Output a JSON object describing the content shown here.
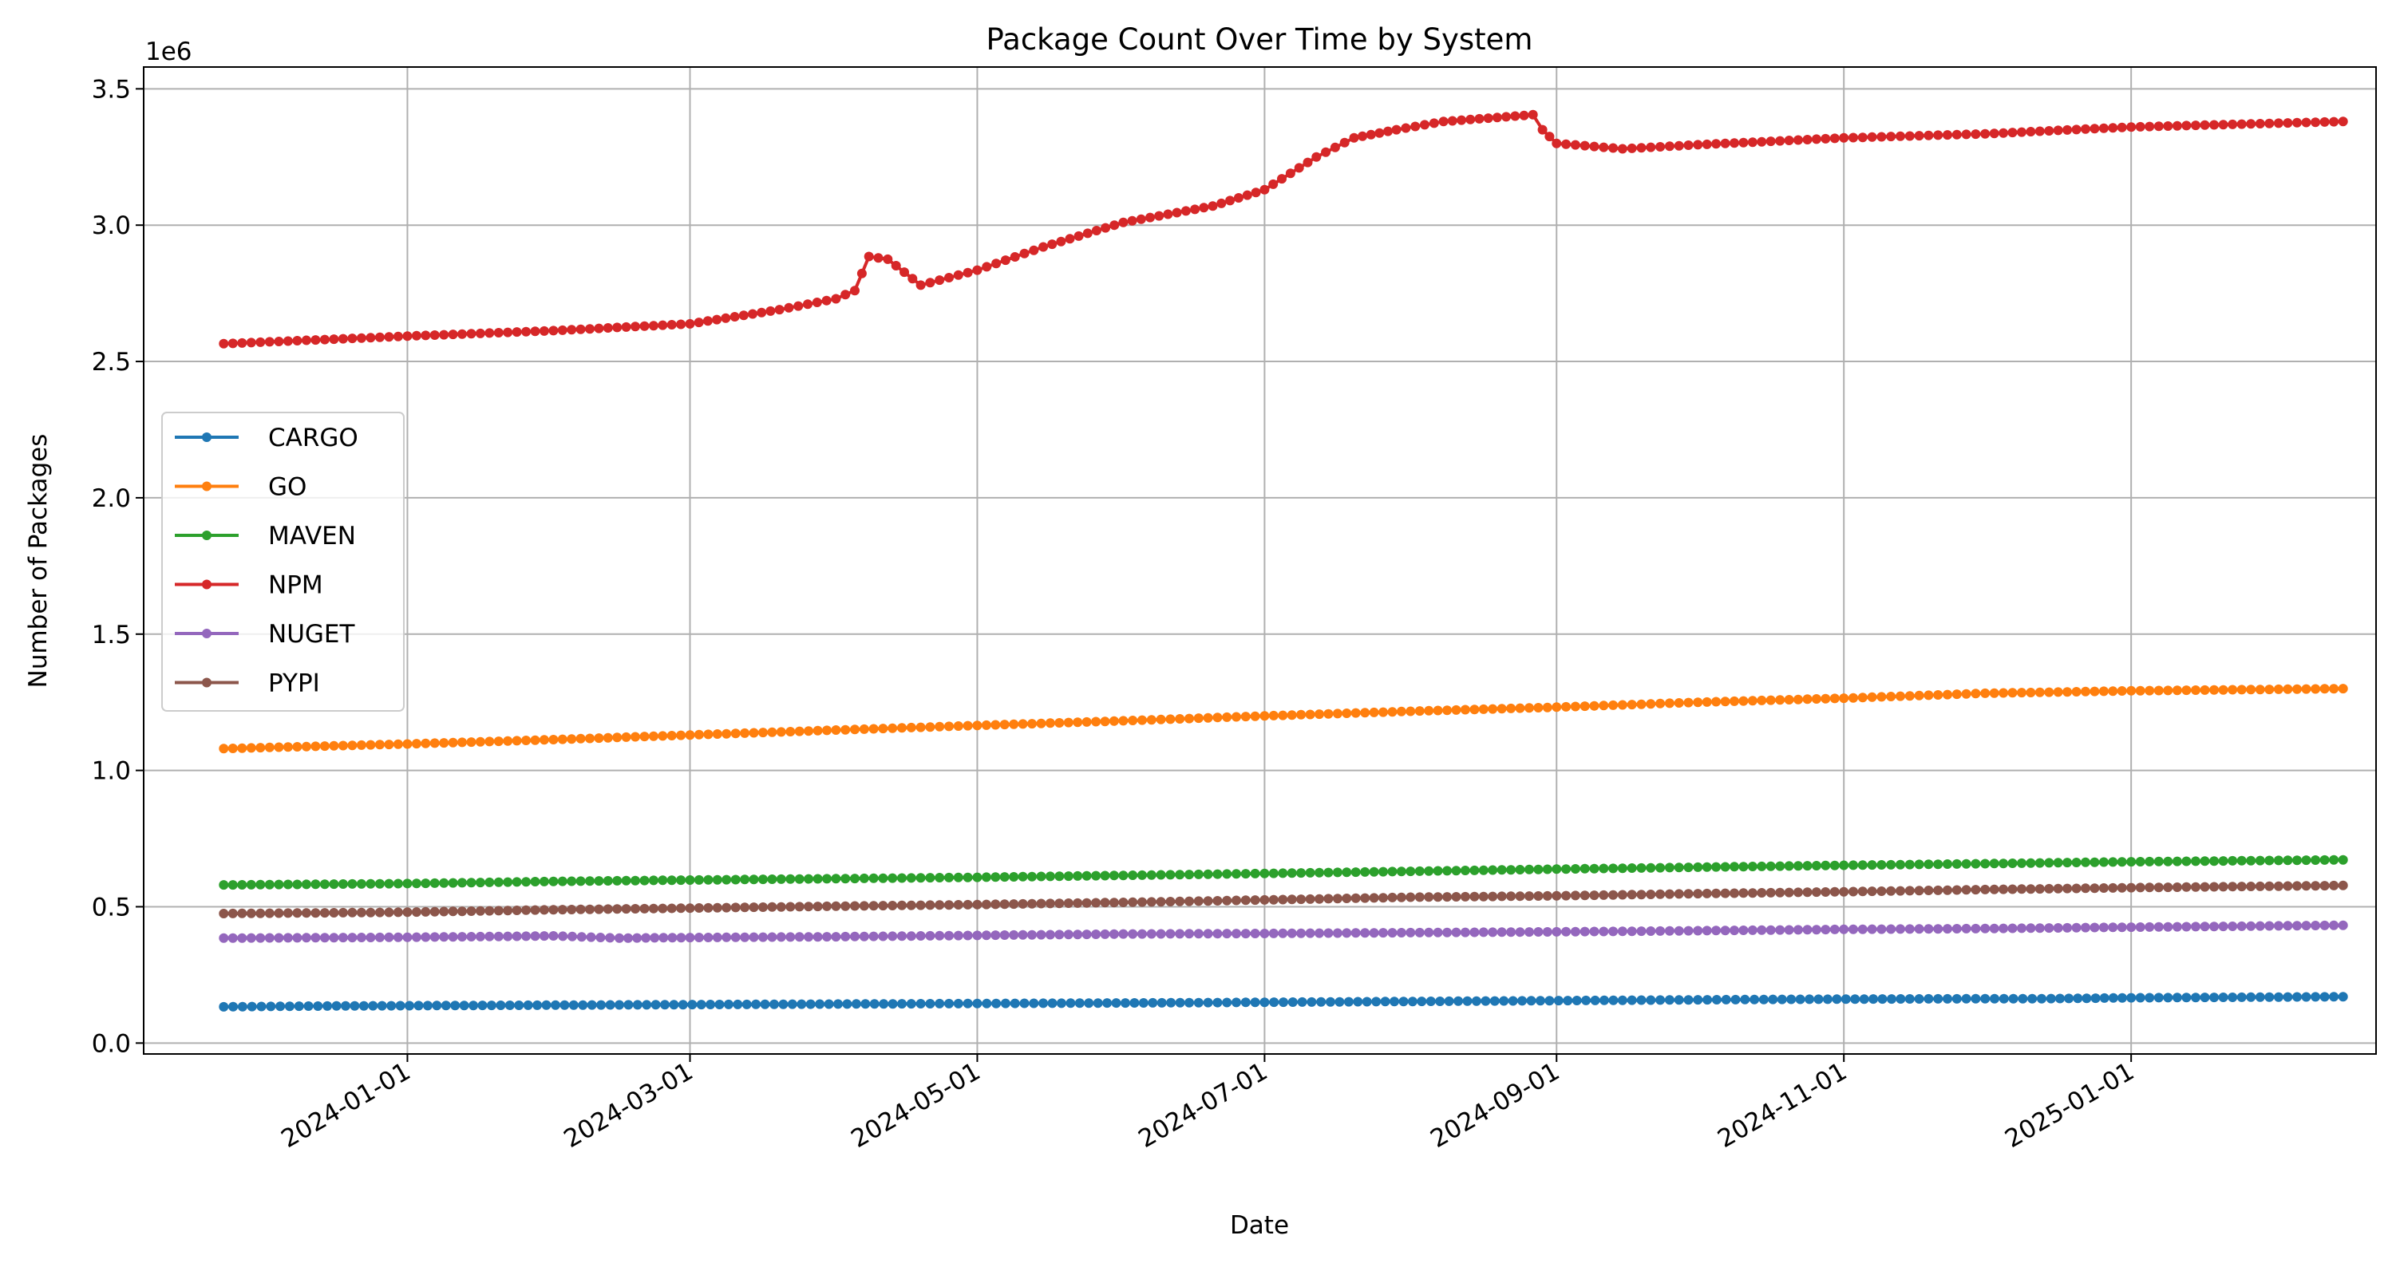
{
  "chart_data": {
    "type": "line",
    "title": "Package Count Over Time by System",
    "xlabel": "Date",
    "ylabel": "Number of Packages",
    "y_multiplier_label": "1e6",
    "x_ticks": [
      "2024-01-01",
      "2024-03-01",
      "2024-05-01",
      "2024-07-01",
      "2024-09-01",
      "2024-11-01",
      "2025-01-01"
    ],
    "y_ticks": [
      "0.0",
      "0.5",
      "1.0",
      "1.5",
      "2.0",
      "2.5",
      "3.0",
      "3.5"
    ],
    "xlim": [
      "2023-11-06",
      "2025-02-22"
    ],
    "ylim": [
      -0.04,
      3.58
    ],
    "y_units": "millions of packages",
    "grid": true,
    "legend_position": "center-left",
    "series": [
      {
        "name": "CARGO",
        "color": "#1f77b4",
        "points": [
          [
            "2023-11-23",
            0.133
          ],
          [
            "2023-12-15",
            0.136
          ],
          [
            "2024-01-15",
            0.138
          ],
          [
            "2024-02-15",
            0.14
          ],
          [
            "2024-03-15",
            0.142
          ],
          [
            "2024-04-15",
            0.144
          ],
          [
            "2024-05-15",
            0.146
          ],
          [
            "2024-06-15",
            0.148
          ],
          [
            "2024-07-15",
            0.151
          ],
          [
            "2024-08-15",
            0.154
          ],
          [
            "2024-09-15",
            0.157
          ],
          [
            "2024-10-15",
            0.16
          ],
          [
            "2024-11-15",
            0.162
          ],
          [
            "2024-12-15",
            0.163
          ],
          [
            "2025-01-01",
            0.166
          ],
          [
            "2025-02-15",
            0.17
          ]
        ]
      },
      {
        "name": "GO",
        "color": "#ff7f0e",
        "points": [
          [
            "2023-11-23",
            1.08
          ],
          [
            "2024-01-01",
            1.097
          ],
          [
            "2024-02-01",
            1.113
          ],
          [
            "2024-03-01",
            1.13
          ],
          [
            "2024-04-01",
            1.148
          ],
          [
            "2024-05-01",
            1.165
          ],
          [
            "2024-06-01",
            1.182
          ],
          [
            "2024-07-01",
            1.2
          ],
          [
            "2024-08-01",
            1.217
          ],
          [
            "2024-09-01",
            1.232
          ],
          [
            "2024-10-01",
            1.25
          ],
          [
            "2024-11-01",
            1.265
          ],
          [
            "2024-12-01",
            1.283
          ],
          [
            "2025-01-01",
            1.292
          ],
          [
            "2025-02-15",
            1.3
          ]
        ]
      },
      {
        "name": "MAVEN",
        "color": "#2ca02c",
        "points": [
          [
            "2023-11-23",
            0.58
          ],
          [
            "2024-01-01",
            0.585
          ],
          [
            "2024-02-01",
            0.593
          ],
          [
            "2024-03-01",
            0.598
          ],
          [
            "2024-04-01",
            0.603
          ],
          [
            "2024-05-01",
            0.608
          ],
          [
            "2024-06-01",
            0.615
          ],
          [
            "2024-07-01",
            0.622
          ],
          [
            "2024-08-01",
            0.63
          ],
          [
            "2024-09-01",
            0.638
          ],
          [
            "2024-10-01",
            0.645
          ],
          [
            "2024-11-01",
            0.652
          ],
          [
            "2024-12-01",
            0.658
          ],
          [
            "2025-01-01",
            0.665
          ],
          [
            "2025-02-15",
            0.672
          ]
        ]
      },
      {
        "name": "NPM",
        "color": "#d62728",
        "points": [
          [
            "2023-11-23",
            2.565
          ],
          [
            "2024-01-01",
            2.593
          ],
          [
            "2024-02-01",
            2.613
          ],
          [
            "2024-03-01",
            2.638
          ],
          [
            "2024-03-20",
            2.69
          ],
          [
            "2024-04-01",
            2.73
          ],
          [
            "2024-04-05",
            2.76
          ],
          [
            "2024-04-08",
            2.885
          ],
          [
            "2024-04-12",
            2.875
          ],
          [
            "2024-04-19",
            2.78
          ],
          [
            "2024-05-01",
            2.835
          ],
          [
            "2024-05-15",
            2.92
          ],
          [
            "2024-06-01",
            3.01
          ],
          [
            "2024-06-20",
            3.07
          ],
          [
            "2024-07-01",
            3.13
          ],
          [
            "2024-07-12",
            3.25
          ],
          [
            "2024-07-20",
            3.32
          ],
          [
            "2024-07-29",
            3.35
          ],
          [
            "2024-08-08",
            3.38
          ],
          [
            "2024-08-27",
            3.405
          ],
          [
            "2024-08-29",
            3.35
          ],
          [
            "2024-09-01",
            3.3
          ],
          [
            "2024-09-15",
            3.28
          ],
          [
            "2024-10-01",
            3.295
          ],
          [
            "2024-11-01",
            3.32
          ],
          [
            "2024-12-01",
            3.335
          ],
          [
            "2025-01-01",
            3.36
          ],
          [
            "2025-02-15",
            3.38
          ]
        ]
      },
      {
        "name": "NUGET",
        "color": "#9467bd",
        "points": [
          [
            "2023-11-23",
            0.385
          ],
          [
            "2024-01-01",
            0.388
          ],
          [
            "2024-02-01",
            0.393
          ],
          [
            "2024-02-15",
            0.385
          ],
          [
            "2024-03-01",
            0.387
          ],
          [
            "2024-04-01",
            0.39
          ],
          [
            "2024-05-01",
            0.395
          ],
          [
            "2024-06-01",
            0.4
          ],
          [
            "2024-07-01",
            0.402
          ],
          [
            "2024-08-01",
            0.405
          ],
          [
            "2024-09-01",
            0.408
          ],
          [
            "2024-10-01",
            0.412
          ],
          [
            "2024-11-01",
            0.417
          ],
          [
            "2024-12-01",
            0.42
          ],
          [
            "2025-01-01",
            0.425
          ],
          [
            "2025-02-15",
            0.432
          ]
        ]
      },
      {
        "name": "PYPI",
        "color": "#8c564b",
        "points": [
          [
            "2023-11-23",
            0.475
          ],
          [
            "2024-01-01",
            0.48
          ],
          [
            "2024-02-01",
            0.489
          ],
          [
            "2024-03-01",
            0.495
          ],
          [
            "2024-04-01",
            0.502
          ],
          [
            "2024-05-01",
            0.508
          ],
          [
            "2024-06-01",
            0.516
          ],
          [
            "2024-07-01",
            0.525
          ],
          [
            "2024-08-01",
            0.535
          ],
          [
            "2024-09-01",
            0.54
          ],
          [
            "2024-10-01",
            0.548
          ],
          [
            "2024-11-01",
            0.555
          ],
          [
            "2024-12-01",
            0.563
          ],
          [
            "2025-01-01",
            0.57
          ],
          [
            "2025-02-15",
            0.578
          ]
        ]
      }
    ]
  }
}
